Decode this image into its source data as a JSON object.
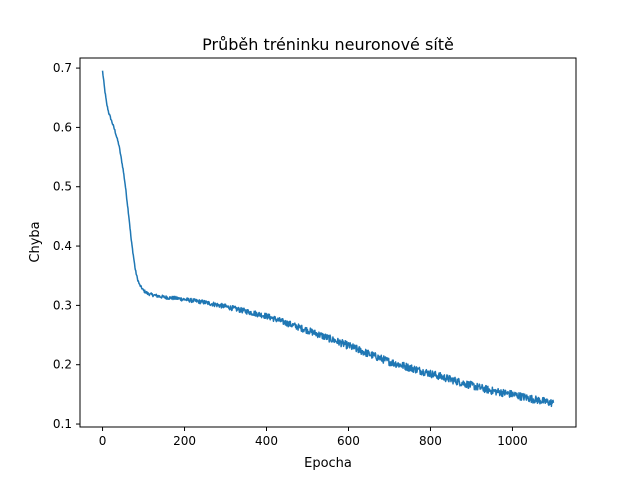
{
  "chart_data": {
    "type": "line",
    "title": "Průběh tréninku neuronové sítě",
    "xlabel": "Epocha",
    "ylabel": "Chyba",
    "xlim": [
      -55,
      1155
    ],
    "ylim": [
      0.095,
      0.717
    ],
    "xticks": [
      0,
      200,
      400,
      600,
      800,
      1000
    ],
    "yticks": [
      0.1,
      0.2,
      0.3,
      0.4,
      0.5,
      0.6,
      0.7
    ],
    "grid": false,
    "color": "#1f77b4",
    "series": [
      {
        "name": "",
        "x": [
          0,
          5,
          10,
          15,
          20,
          30,
          40,
          50,
          55,
          60,
          65,
          70,
          75,
          80,
          85,
          90,
          100,
          110,
          120,
          140,
          160,
          180,
          200,
          250,
          300,
          350,
          400,
          450,
          500,
          550,
          600,
          650,
          700,
          750,
          800,
          850,
          900,
          950,
          1000,
          1050,
          1100
        ],
        "y": [
          0.695,
          0.665,
          0.64,
          0.625,
          0.615,
          0.595,
          0.57,
          0.53,
          0.505,
          0.475,
          0.445,
          0.41,
          0.385,
          0.36,
          0.345,
          0.335,
          0.325,
          0.32,
          0.318,
          0.315,
          0.313,
          0.312,
          0.31,
          0.305,
          0.298,
          0.29,
          0.282,
          0.27,
          0.258,
          0.245,
          0.232,
          0.218,
          0.205,
          0.195,
          0.185,
          0.175,
          0.165,
          0.156,
          0.15,
          0.142,
          0.135
        ]
      }
    ]
  }
}
